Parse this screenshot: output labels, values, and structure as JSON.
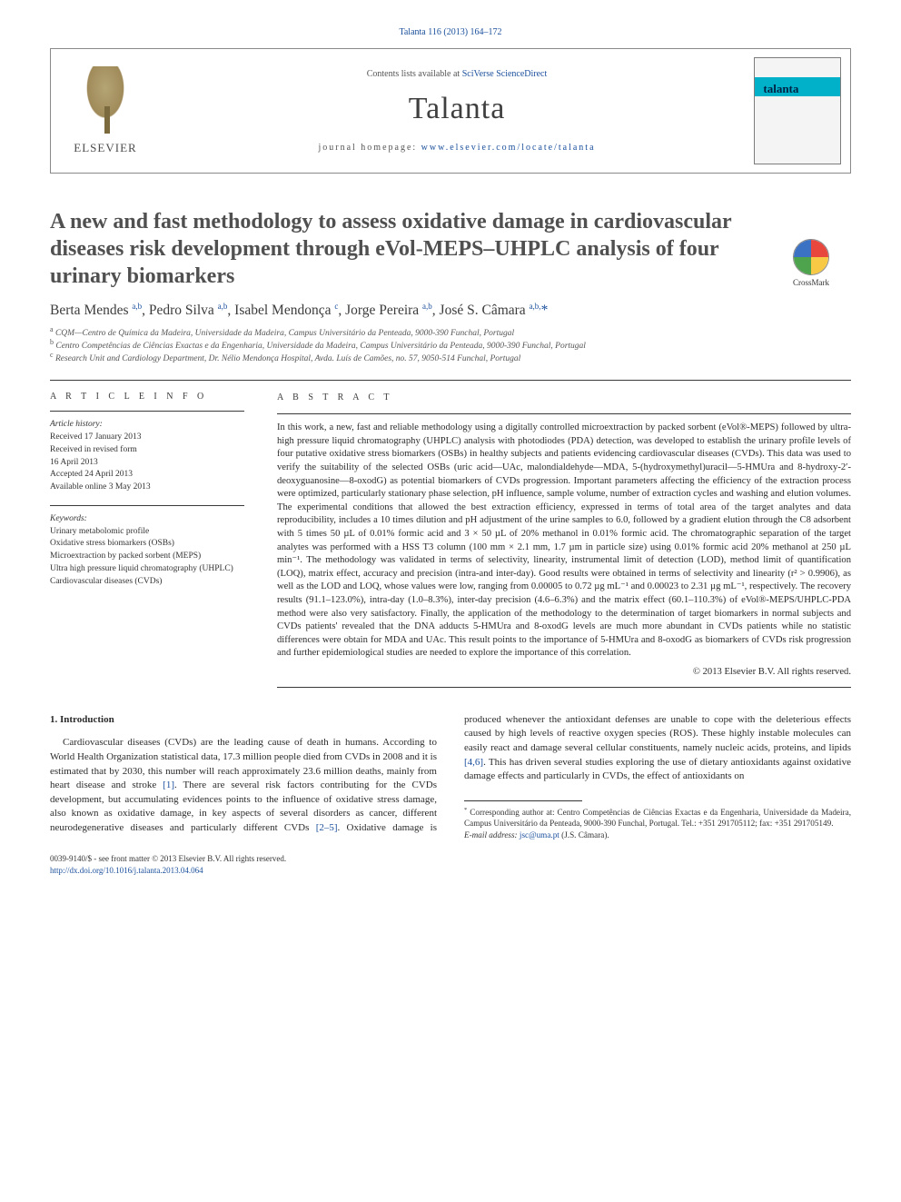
{
  "top_citation": "Talanta 116 (2013) 164–172",
  "header": {
    "contents_prefix": "Contents lists available at ",
    "contents_link": "SciVerse ScienceDirect",
    "journal": "Talanta",
    "homepage_prefix": "journal homepage: ",
    "homepage_link": "www.elsevier.com/locate/talanta",
    "publisher_name": "ELSEVIER",
    "cover_word": "talanta"
  },
  "crossmark_label": "CrossMark",
  "title": "A new and fast methodology to assess oxidative damage in cardiovascular diseases risk development through eVol-MEPS–UHPLC analysis of four urinary biomarkers",
  "authors_html": "Berta Mendes <sup>a,b</sup>, Pedro Silva <sup>a,b</sup>, Isabel Mendonça <sup>c</sup>, Jorge Pereira <sup>a,b</sup>, José S. Câmara <sup>a,b,</sup><span class='star'>*</span>",
  "affils": {
    "a": "CQM—Centro de Química da Madeira, Universidade da Madeira, Campus Universitário da Penteada, 9000-390 Funchal, Portugal",
    "b": "Centro Competências de Ciências Exactas e da Engenharia, Universidade da Madeira, Campus Universitário da Penteada, 9000-390 Funchal, Portugal",
    "c": "Research Unit and Cardiology Department, Dr. Nélio Mendonça Hospital, Avda. Luís de Camões, no. 57, 9050-514 Funchal, Portugal"
  },
  "meta": {
    "article_info_h": "A R T I C L E  I N F O",
    "abstract_h": "A B S T R A C T",
    "history_lbl": "Article history:",
    "history": [
      "Received 17 January 2013",
      "Received in revised form",
      "16 April 2013",
      "Accepted 24 April 2013",
      "Available online 3 May 2013"
    ],
    "keywords_lbl": "Keywords:",
    "keywords": [
      "Urinary metabolomic profile",
      "Oxidative stress biomarkers (OSBs)",
      "Microextraction by packed sorbent (MEPS)",
      "Ultra high pressure liquid chromatography (UHPLC)",
      "Cardiovascular diseases (CVDs)"
    ]
  },
  "abstract": "In this work, a new, fast and reliable methodology using a digitally controlled microextraction by packed sorbent (eVol®-MEPS) followed by ultra-high pressure liquid chromatography (UHPLC) analysis with photodiodes (PDA) detection, was developed to establish the urinary profile levels of four putative oxidative stress biomarkers (OSBs) in healthy subjects and patients evidencing cardiovascular diseases (CVDs). This data was used to verify the suitability of the selected OSBs (uric acid—UAc, malondialdehyde—MDA, 5-(hydroxymethyl)uracil—5-HMUra and 8-hydroxy-2′-deoxyguanosine—8-oxodG) as potential biomarkers of CVDs progression. Important parameters affecting the efficiency of the extraction process were optimized, particularly stationary phase selection, pH influence, sample volume, number of extraction cycles and washing and elution volumes. The experimental conditions that allowed the best extraction efficiency, expressed in terms of total area of the target analytes and data reproducibility, includes a 10 times dilution and pH adjustment of the urine samples to 6.0, followed by a gradient elution through the C8 adsorbent with 5 times 50 µL of 0.01% formic acid and 3 × 50 µL of 20% methanol in 0.01% formic acid. The chromatographic separation of the target analytes was performed with a HSS T3 column (100 mm × 2.1 mm, 1.7 µm in particle size) using 0.01% formic acid 20% methanol at 250 µL min⁻¹. The methodology was validated in terms of selectivity, linearity, instrumental limit of detection (LOD), method limit of quantification (LOQ), matrix effect, accuracy and precision (intra-and inter-day). Good results were obtained in terms of selectivity and linearity (r² > 0.9906), as well as the LOD and LOQ, whose values were low, ranging from 0.00005 to 0.72 µg mL⁻¹ and 0.00023 to 2.31 µg mL⁻¹, respectively. The recovery results (91.1–123.0%), intra-day (1.0–8.3%), inter-day precision (4.6–6.3%) and the matrix effect (60.1–110.3%) of eVol®-MEPS/UHPLC-PDA method were also very satisfactory. Finally, the application of the methodology to the determination of target biomarkers in normal subjects and CVDs patients' revealed that the DNA adducts 5-HMUra and 8-oxodG levels are much more abundant in CVDs patients while no statistic differences were obtain for MDA and UAc. This result points to the importance of 5-HMUra and 8-oxodG as biomarkers of CVDs risk progression and further epidemiological studies are needed to explore the importance of this correlation.",
  "copyright_line": "© 2013 Elsevier B.V. All rights reserved.",
  "section1_h": "1.  Introduction",
  "body_p1": "Cardiovascular diseases (CVDs) are the leading cause of death in humans. According to World Health Organization statistical data, 17.3 million people died from CVDs in 2008 and it is estimated that by 2030, this number will reach approximately 23.6 million deaths, mainly from heart disease and stroke ",
  "ref1": "[1]",
  "body_p1_end": ".",
  "body_p2a": "There are several risk factors contributing for the CVDs development, but accumulating evidences points to the influence of oxidative stress damage, also known as oxidative damage, in key aspects of several disorders as cancer, different neurodegenerative diseases and particularly different CVDs ",
  "ref25": "[2–5]",
  "body_p2b": ". Oxidative damage is produced whenever the antioxidant defenses are unable to cope with the deleterious effects caused by high levels of reactive oxygen species (ROS). These highly instable molecules can easily react and damage several cellular constituents, namely nucleic acids, proteins, and lipids ",
  "ref46": "[4,6]",
  "body_p2c": ". This has driven several studies exploring the use of dietary antioxidants against oxidative damage effects and particularly in CVDs, the effect of antioxidants on",
  "footnotes": {
    "corr": "Corresponding author at: Centro Competências de Ciências Exactas e da Engenharia, Universidade da Madeira, Campus Universitário da Penteada, 9000-390 Funchal, Portugal. Tel.: +351 291705112; fax: +351 291705149.",
    "email_lbl": "E-mail address:",
    "email": "jsc@uma.pt",
    "email_who": "(J.S. Câmara)."
  },
  "bottom": {
    "issn_line": "0039-9140/$ - see front matter © 2013 Elsevier B.V. All rights reserved.",
    "doi_link": "http://dx.doi.org/10.1016/j.talanta.2013.04.064"
  },
  "colors": {
    "link": "#1a4f9c",
    "text": "#2b2b2b",
    "gray": "#555555",
    "rule": "#3a3a3a"
  },
  "fonts": {
    "body_pt": 11,
    "abstract_pt": 10.6,
    "title_pt": 24,
    "journal_pt": 34,
    "meta_pt": 9.5,
    "footnote_pt": 9.2
  }
}
